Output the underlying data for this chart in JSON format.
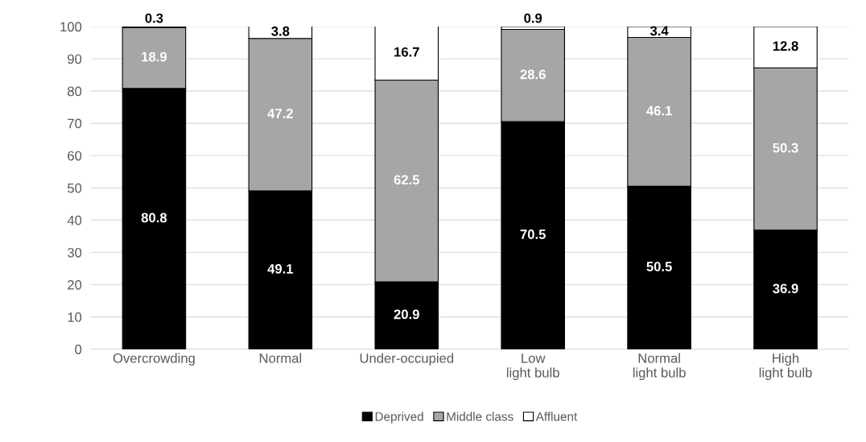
{
  "chart_data": {
    "type": "bar",
    "stacked": true,
    "categories": [
      "Overcrowding",
      "Normal",
      "Under-occupied",
      "Low\nlight bulb",
      "Normal\nlight bulb",
      "High\nlight bulb"
    ],
    "series": [
      {
        "name": "Deprived",
        "color": "#000000",
        "values": [
          80.8,
          49.1,
          20.9,
          70.5,
          50.5,
          36.9
        ]
      },
      {
        "name": "Middle class",
        "color": "#a6a6a6",
        "values": [
          18.9,
          47.2,
          62.5,
          28.6,
          46.1,
          50.3
        ]
      },
      {
        "name": "Affluent",
        "color": "#ffffff",
        "values": [
          0.3,
          3.8,
          16.7,
          0.9,
          3.4,
          12.8
        ]
      }
    ],
    "ylim": [
      0,
      100
    ],
    "yticks": [
      0,
      10,
      20,
      30,
      40,
      50,
      60,
      70,
      80,
      90,
      100
    ],
    "grid": "y",
    "legend": "bottom",
    "data_labels": true
  }
}
